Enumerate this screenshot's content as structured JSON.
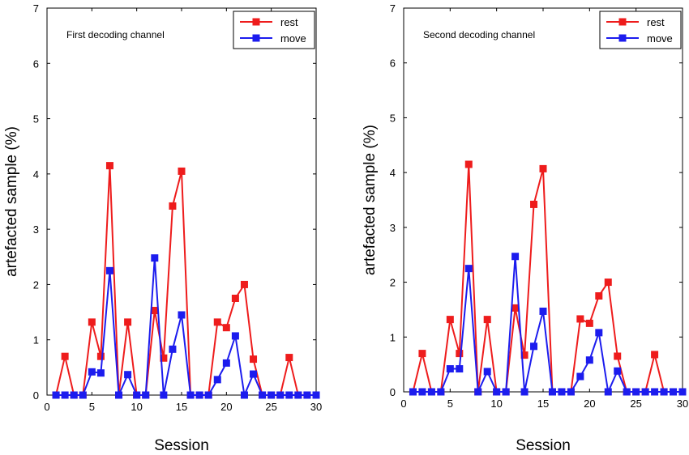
{
  "chart_data": [
    {
      "type": "line",
      "annotation": "First decoding channel",
      "xlabel": "Session",
      "ylabel": "artefacted sample (%)",
      "xlim": [
        0,
        30
      ],
      "ylim": [
        0,
        7
      ],
      "xticks": [
        "0",
        "5",
        "10",
        "15",
        "20",
        "25",
        "30"
      ],
      "yticks": [
        "0",
        "1",
        "2",
        "3",
        "4",
        "5",
        "6",
        "7"
      ],
      "legend_position": "top-right",
      "x": [
        1,
        2,
        3,
        4,
        5,
        6,
        7,
        8,
        9,
        10,
        11,
        12,
        13,
        14,
        15,
        16,
        17,
        18,
        19,
        20,
        21,
        22,
        23,
        24,
        25,
        26,
        27,
        28,
        29,
        30
      ],
      "series": [
        {
          "name": "rest",
          "color": "#ee1c1c",
          "values": [
            0,
            0.7,
            0,
            0,
            1.32,
            0.7,
            4.15,
            0,
            1.32,
            0,
            0,
            1.53,
            0.67,
            3.42,
            4.05,
            0,
            0,
            0,
            1.32,
            1.22,
            1.75,
            2.0,
            0.65,
            0,
            0,
            0,
            0.68,
            0,
            0,
            0
          ]
        },
        {
          "name": "move",
          "color": "#1c1cee",
          "values": [
            0,
            0,
            0,
            0,
            0.42,
            0.4,
            2.25,
            0,
            0.37,
            0,
            0,
            2.48,
            0,
            0.83,
            1.45,
            0,
            0,
            0,
            0.28,
            0.58,
            1.07,
            0,
            0.38,
            0,
            0,
            0,
            0,
            0,
            0,
            0
          ]
        }
      ]
    },
    {
      "type": "line",
      "annotation": "Second decoding channel",
      "xlabel": "Session",
      "ylabel": "artefacted sample (%)",
      "xlim": [
        0,
        30
      ],
      "ylim": [
        0,
        7
      ],
      "xticks": [
        "0",
        "5",
        "10",
        "15",
        "20",
        "25",
        "30"
      ],
      "yticks": [
        "0",
        "1",
        "2",
        "3",
        "4",
        "5",
        "6",
        "7"
      ],
      "legend_position": "top-right",
      "x": [
        1,
        2,
        3,
        4,
        5,
        6,
        7,
        8,
        9,
        10,
        11,
        12,
        13,
        14,
        15,
        16,
        17,
        18,
        19,
        20,
        21,
        22,
        23,
        24,
        25,
        26,
        27,
        28,
        29,
        30
      ],
      "series": [
        {
          "name": "rest",
          "color": "#ee1c1c",
          "values": [
            0,
            0.7,
            0,
            0,
            1.32,
            0.7,
            4.15,
            0,
            1.32,
            0,
            0,
            1.53,
            0.67,
            3.42,
            4.07,
            0,
            0,
            0,
            1.33,
            1.25,
            1.75,
            2.0,
            0.65,
            0,
            0,
            0,
            0.68,
            0,
            0,
            0
          ]
        },
        {
          "name": "move",
          "color": "#1c1cee",
          "values": [
            0,
            0,
            0,
            0,
            0.42,
            0.42,
            2.25,
            0,
            0.37,
            0,
            0,
            2.47,
            0,
            0.83,
            1.47,
            0,
            0,
            0,
            0.28,
            0.58,
            1.08,
            0,
            0.38,
            0,
            0,
            0,
            0,
            0,
            0,
            0
          ]
        }
      ]
    }
  ]
}
